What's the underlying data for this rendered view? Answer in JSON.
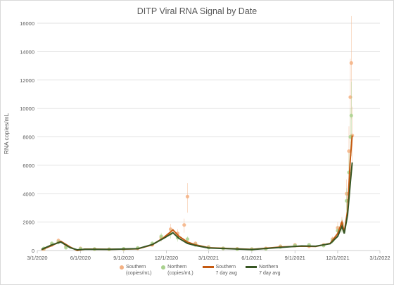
{
  "chart_data": {
    "type": "scatter",
    "title": "DITP Viral RNA Signal by Date",
    "ylabel": "RNA copies/mL",
    "xlabel": "",
    "ylim": [
      0,
      16000
    ],
    "yticks": [
      "0",
      "2000",
      "4000",
      "6000",
      "8000",
      "10000",
      "12000",
      "14000",
      "16000"
    ],
    "xticks": [
      "3/1/2020",
      "6/1/2020",
      "9/1/2020",
      "12/1/2020",
      "3/1/2021",
      "6/1/2021",
      "9/1/2021",
      "12/1/2021",
      "3/1/2022"
    ],
    "grid": "horizontal",
    "legend_position": "bottom",
    "series": [
      {
        "name": "Southern (copies/mL)",
        "kind": "points",
        "color": "#f4b183",
        "points": [
          [
            "3/15/2020",
            100
          ],
          [
            "4/1/2020",
            400
          ],
          [
            "4/15/2020",
            700
          ],
          [
            "5/1/2020",
            300
          ],
          [
            "6/1/2020",
            150
          ],
          [
            "7/1/2020",
            100
          ],
          [
            "8/1/2020",
            80
          ],
          [
            "9/1/2020",
            100
          ],
          [
            "10/1/2020",
            150
          ],
          [
            "11/1/2020",
            400
          ],
          [
            "11/20/2020",
            900
          ],
          [
            "12/10/2020",
            1500
          ],
          [
            "12/25/2020",
            1200
          ],
          [
            "1/8/2021",
            1800
          ],
          [
            "1/15/2021",
            3800
          ],
          [
            "2/1/2021",
            500
          ],
          [
            "3/1/2021",
            250
          ],
          [
            "4/1/2021",
            150
          ],
          [
            "5/1/2021",
            120
          ],
          [
            "6/1/2021",
            100
          ],
          [
            "7/1/2021",
            150
          ],
          [
            "8/1/2021",
            300
          ],
          [
            "9/1/2021",
            400
          ],
          [
            "10/1/2021",
            300
          ],
          [
            "11/1/2021",
            400
          ],
          [
            "11/20/2021",
            800
          ],
          [
            "12/1/2021",
            1600
          ],
          [
            "12/10/2021",
            1900
          ],
          [
            "12/20/2021",
            4000
          ],
          [
            "12/25/2021",
            7000
          ],
          [
            "12/28/2021",
            10800
          ],
          [
            "12/30/2021",
            13200
          ],
          [
            "1/1/2022",
            8100
          ]
        ]
      },
      {
        "name": "Northern (copies/mL)",
        "kind": "points",
        "color": "#a9d18e",
        "points": [
          [
            "3/15/2020",
            150
          ],
          [
            "4/1/2020",
            500
          ],
          [
            "4/15/2020",
            600
          ],
          [
            "5/1/2020",
            200
          ],
          [
            "6/1/2020",
            120
          ],
          [
            "7/1/2020",
            100
          ],
          [
            "8/1/2020",
            90
          ],
          [
            "9/1/2020",
            120
          ],
          [
            "10/1/2020",
            180
          ],
          [
            "11/1/2020",
            500
          ],
          [
            "11/20/2020",
            1000
          ],
          [
            "12/10/2020",
            1200
          ],
          [
            "12/25/2020",
            900
          ],
          [
            "1/15/2021",
            800
          ],
          [
            "2/1/2021",
            400
          ],
          [
            "3/1/2021",
            200
          ],
          [
            "4/1/2021",
            150
          ],
          [
            "5/1/2021",
            100
          ],
          [
            "6/1/2021",
            90
          ],
          [
            "7/1/2021",
            120
          ],
          [
            "8/1/2021",
            250
          ],
          [
            "9/1/2021",
            350
          ],
          [
            "10/1/2021",
            400
          ],
          [
            "11/1/2021",
            350
          ],
          [
            "11/20/2021",
            700
          ],
          [
            "12/1/2021",
            1400
          ],
          [
            "12/10/2021",
            1800
          ],
          [
            "12/20/2021",
            3500
          ],
          [
            "12/25/2021",
            5500
          ],
          [
            "12/28/2021",
            8000
          ],
          [
            "12/30/2021",
            9500
          ]
        ]
      },
      {
        "name": "Southern 7 day avg",
        "kind": "line",
        "color": "#c55a11",
        "points": [
          [
            "3/10/2020",
            50
          ],
          [
            "4/1/2020",
            350
          ],
          [
            "4/20/2020",
            650
          ],
          [
            "5/10/2020",
            250
          ],
          [
            "5/25/2020",
            0
          ],
          [
            "6/10/2020",
            100
          ],
          [
            "8/1/2020",
            90
          ],
          [
            "10/1/2020",
            120
          ],
          [
            "11/1/2020",
            400
          ],
          [
            "11/25/2020",
            900
          ],
          [
            "12/15/2020",
            1450
          ],
          [
            "12/28/2020",
            1000
          ],
          [
            "1/15/2021",
            600
          ],
          [
            "2/1/2021",
            400
          ],
          [
            "3/1/2021",
            200
          ],
          [
            "6/1/2021",
            80
          ],
          [
            "8/1/2021",
            250
          ],
          [
            "9/15/2021",
            300
          ],
          [
            "10/15/2021",
            280
          ],
          [
            "11/15/2021",
            500
          ],
          [
            "12/1/2021",
            1200
          ],
          [
            "12/10/2021",
            2000
          ],
          [
            "12/15/2021",
            1300
          ],
          [
            "12/22/2021",
            2800
          ],
          [
            "12/28/2021",
            6500
          ],
          [
            "1/1/2022",
            8100
          ]
        ]
      },
      {
        "name": "Northern 7 day avg",
        "kind": "line",
        "color": "#375623",
        "points": [
          [
            "3/10/2020",
            80
          ],
          [
            "4/1/2020",
            400
          ],
          [
            "4/20/2020",
            600
          ],
          [
            "5/10/2020",
            200
          ],
          [
            "5/25/2020",
            50
          ],
          [
            "6/10/2020",
            90
          ],
          [
            "8/1/2020",
            80
          ],
          [
            "10/1/2020",
            130
          ],
          [
            "11/1/2020",
            420
          ],
          [
            "11/25/2020",
            850
          ],
          [
            "12/15/2020",
            1250
          ],
          [
            "12/28/2020",
            850
          ],
          [
            "1/15/2021",
            500
          ],
          [
            "2/1/2021",
            350
          ],
          [
            "3/1/2021",
            180
          ],
          [
            "6/1/2021",
            70
          ],
          [
            "8/1/2021",
            220
          ],
          [
            "9/15/2021",
            320
          ],
          [
            "10/15/2021",
            300
          ],
          [
            "11/15/2021",
            480
          ],
          [
            "12/1/2021",
            1000
          ],
          [
            "12/10/2021",
            1700
          ],
          [
            "12/15/2021",
            1200
          ],
          [
            "12/22/2021",
            2500
          ],
          [
            "12/28/2021",
            4800
          ],
          [
            "1/1/2022",
            6200
          ]
        ]
      }
    ]
  }
}
